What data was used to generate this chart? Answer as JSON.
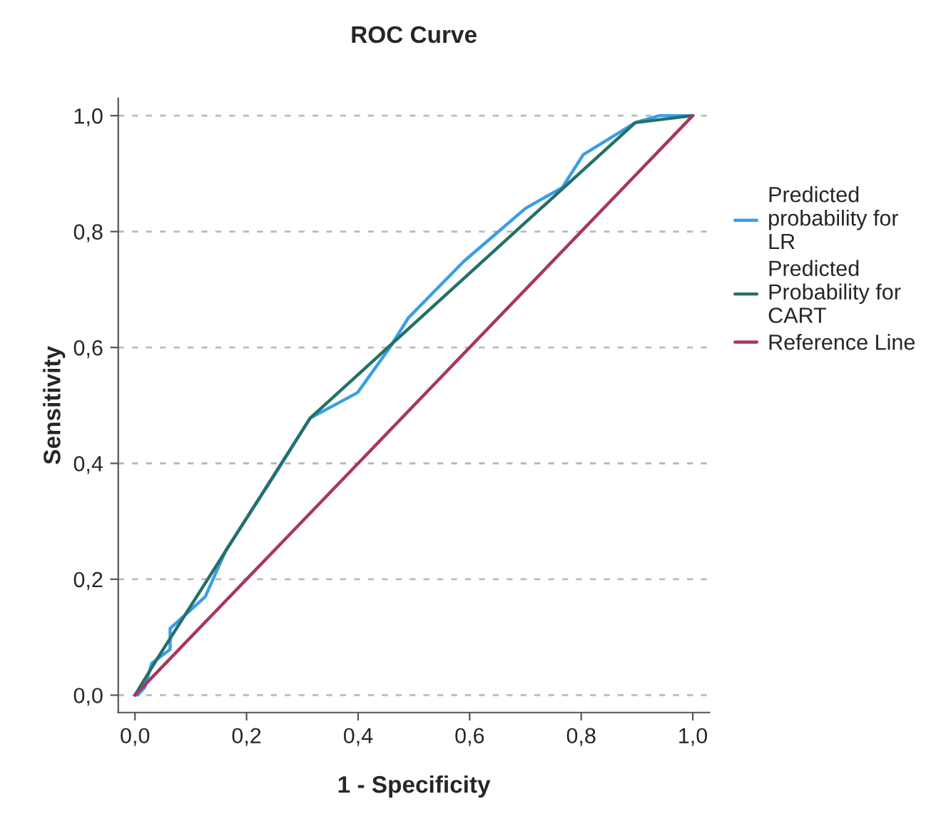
{
  "chart_data": {
    "type": "line",
    "title": "ROC Curve",
    "xlabel": "1 - Specificity",
    "ylabel": "Sensitivity",
    "series": [
      {
        "name": "Predicted probability for LR",
        "color": "#3a9ee6",
        "x": [
          0.005,
          0.018,
          0.03,
          0.063,
          0.063,
          0.126,
          0.163,
          0.249,
          0.314,
          0.399,
          0.457,
          0.49,
          0.59,
          0.7,
          0.766,
          0.804,
          0.897,
          0.94,
          1.0
        ],
        "values": [
          0.0,
          0.014,
          0.055,
          0.079,
          0.115,
          0.17,
          0.25,
          0.378,
          0.478,
          0.522,
          0.6,
          0.651,
          0.749,
          0.84,
          0.876,
          0.933,
          0.988,
          1.0,
          1.0
        ]
      },
      {
        "name": "Predicted Probability for CART",
        "color": "#24706a",
        "x": [
          0.0,
          0.038,
          0.314,
          0.897,
          1.0
        ],
        "values": [
          0.0,
          0.06,
          0.478,
          0.988,
          1.0
        ]
      },
      {
        "name": "Reference Line",
        "color": "#a8365f",
        "x": [
          0.0,
          1.0
        ],
        "values": [
          0.0,
          1.0
        ]
      }
    ],
    "xlim": [
      -0.03,
      1.03
    ],
    "ylim": [
      -0.03,
      1.03
    ],
    "xticks": [
      {
        "value": 0,
        "label": "0,0"
      },
      {
        "value": 0.2,
        "label": "0,2"
      },
      {
        "value": 0.4,
        "label": "0,4"
      },
      {
        "value": 0.6,
        "label": "0,6"
      },
      {
        "value": 0.8,
        "label": "0,8"
      },
      {
        "value": 1.0,
        "label": "1,0"
      }
    ],
    "yticks": [
      {
        "value": 0,
        "label": "0,0"
      },
      {
        "value": 0.2,
        "label": "0,2"
      },
      {
        "value": 0.4,
        "label": "0,4"
      },
      {
        "value": 0.6,
        "label": "0,6"
      },
      {
        "value": 0.8,
        "label": "0,8"
      },
      {
        "value": 1.0,
        "label": "1,0"
      }
    ],
    "grid": "y",
    "legend": "right",
    "line_style": "solid",
    "marker": "none"
  }
}
